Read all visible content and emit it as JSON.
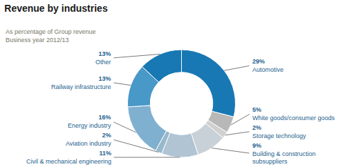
{
  "chart_data": {
    "type": "pie",
    "title": "Revenue by industries",
    "subtitle": "As percentage of Group revenue\nBusiness year 2012/13",
    "categories": [
      "Automotive",
      "White goods/consumer goods",
      "Storage technology",
      "Building & construction\nsubsuppliers",
      "Civil & mechanical engineering",
      "Aviation industry",
      "Energy industry",
      "Railway infrastructure",
      "Other"
    ],
    "values": [
      29,
      5,
      2,
      9,
      11,
      2,
      16,
      13,
      13
    ],
    "value_labels": [
      "29%",
      "5%",
      "2%",
      "9%",
      "11%",
      "2%",
      "16%",
      "13%",
      "13%"
    ],
    "colors": [
      "#1878b4",
      "#b8b8b8",
      "#d0d0d0",
      "#c8d0d8",
      "#b0c4d4",
      "#98b8cc",
      "#80b0d0",
      "#4898c8",
      "#1878b4"
    ],
    "data_labels": true
  }
}
